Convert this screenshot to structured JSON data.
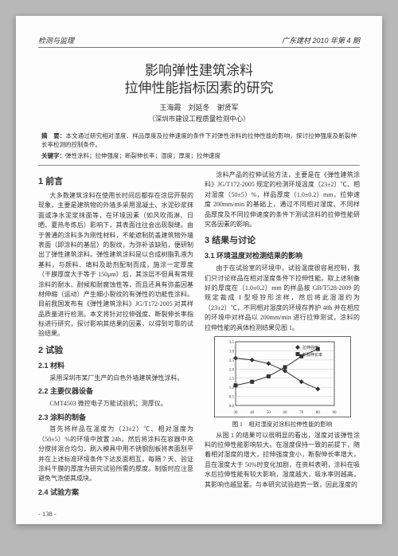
{
  "header": {
    "left": "检测与监理",
    "right": "广东建材 2010 年第 4 期"
  },
  "title": {
    "line1": "影响弹性建筑涂料",
    "line2": "拉伸性能指标因素的研究"
  },
  "authors": "王海霞　刘延冬　谢贤军",
  "affiliation": "（深圳市建设工程质量检测中心）",
  "abstract": {
    "label": "摘　要：",
    "text": "本文通过研究相对湿度、样品厚度及拉伸速度的条件下对弹性涂料的拉伸性能的影响，探讨拉伸强度及断裂伸长率检测的控制条件。"
  },
  "keywords": {
    "label": "关键字：",
    "text": "弹性涂料；拉伸强度；断裂伸长率；湿度；厚度；拉伸速度"
  },
  "sections": {
    "s1_title": "1 前言",
    "s1_p1": "大多数建筑涂料在使用长时间后都存在涂层开裂的现象，主要是建筑物的外墙多采用混凝土、水泥砂浆抹面或净水泥浆抹面等，在环境因素（如风吹雨淋、日晒、夏热冬炼后）影响下，其表面往往会出现裂缝。由于普通的涂料多为刚性材料，不能遮制防盖建筑物外墙表面（即涂料的基层）的裂纹，为弥补该缺陷，便研制出了弹性建筑涂料。弹性建筑涂料是以合成树脂乳液为基料，与颜料、填料及助剂配制而成，施涂一定厚度（干膜厚度大于等于 150μm）后，其涂层不但具有常规涂料的耐水、耐候和耐腐蚀性等，而且还具有弥盖因基材伸缩（运动）产生细小裂纹的有弹性的功能性涂料。目前我国发布有《弹性建筑涂料》JG/T172-2005 对其样品质量进行检测。本文将针对拉伸强度、断裂伸长率指标进行研究，探讨影响其结果的因素，以得到可靠的试验结果。",
    "s2_title": "2 试验",
    "s21_title": "2.1 材料",
    "s21_p": "采用深圳市某厂生产的白色外墙建筑弹性涂料。",
    "s22_title": "2.2 主要仪器设备",
    "s22_p": "CMT4503 微控电子万能试验机；测厚仪。",
    "s23_title": "2.3 涂料的制备",
    "s23_p": "首先将样品在温度为（23±2）℃、相对湿度为（50±5）%的环境中放置 24h，然后将涂料在容器中充分搅拌混合均匀，刷入模具中用不锈钢刮板将表面刮平并在上述标准环境条件下达反面相互，每隔 7 天、验证涂料干膜的厚度为研究试验所需的厚度。制版时应注意避免气泡使其成块。",
    "s24_title": "2.4 试验方案",
    "col2_p1": "涂料产品的拉伸试验方法，主要是在《弹性建筑涂料》JG/T172-2005 规定的检测环境温度（23±2）℃、相对湿度（50±5）%，样品厚度（1.0±0.2）mm，拉伸速度 200mm/min 的基础上，通过不同相对湿度、不同样品厚度及不同拉伸速度的条件下测试涂料的拉伸性能研究各因素的影响。",
    "s3_title": "3 结果与讨论",
    "s31_title": "3.1 环境温度对检测结果的影响",
    "s31_p1": "由于在试验室的环境中，试验温度很容易控制，我们只讨论样品在相对湿度条件下拉伸性能。取上述制备好的厚度在（1.0±0.2）mm 的样品按 GB/T528-2009 的规定裁成 I 型哑铃形涂样，然后将此湿湿约为（23±2）℃，不同相对湿度的环境存养护 48h 并在相应的环境中对样品以 200mm/min 进行拉伸测试，涂料的拉伸性能的具体检测结果见图 1。",
    "s31_p2": "从图 1 的结果可以很明显的看出，湿度对该弹性涂料的拉伸性能影响较大。在湿度保持一致的前提下，随着相对湿度的增大，拉伸强度变小，断裂伸长率增大，且在湿度大于 50%时变化加剧，在资料表明，涂料在吸水后拉伸性能有较大影响，湿度越大，吸水率则越高，其影响也越显著。与本研究试验趋势一致，因此湿度的"
  },
  "figure": {
    "caption": "图 1　相对湿度对涂料拉伸性能的影响",
    "chart": {
      "type": "line",
      "width": 170,
      "height": 100,
      "background_color": "#fdfdfd",
      "axis_color": "#333333",
      "grid_color": "#cccccc",
      "xlim": [
        30,
        90
      ],
      "xticks": [
        30,
        40,
        50,
        60,
        70,
        80,
        90
      ],
      "ylim_left": [
        0,
        3.5
      ],
      "yticks_left": [
        0,
        0.5,
        1.0,
        1.5,
        2.0,
        2.5,
        3.0,
        3.5
      ],
      "ylim_right": [
        0,
        350
      ],
      "series": [
        {
          "name": "拉伸强度",
          "color": "#333333",
          "marker": "diamond",
          "x": [
            30,
            40,
            50,
            60,
            70,
            80
          ],
          "y": [
            2.6,
            2.5,
            2.3,
            1.9,
            1.3,
            0.9
          ]
        },
        {
          "name": "断裂伸长率",
          "color": "#333333",
          "marker": "square",
          "x_r": [
            30,
            40,
            50,
            60,
            70,
            80
          ],
          "y_r": [
            110,
            130,
            160,
            210,
            270,
            310
          ]
        }
      ]
    }
  },
  "page_number": "- 138 -"
}
